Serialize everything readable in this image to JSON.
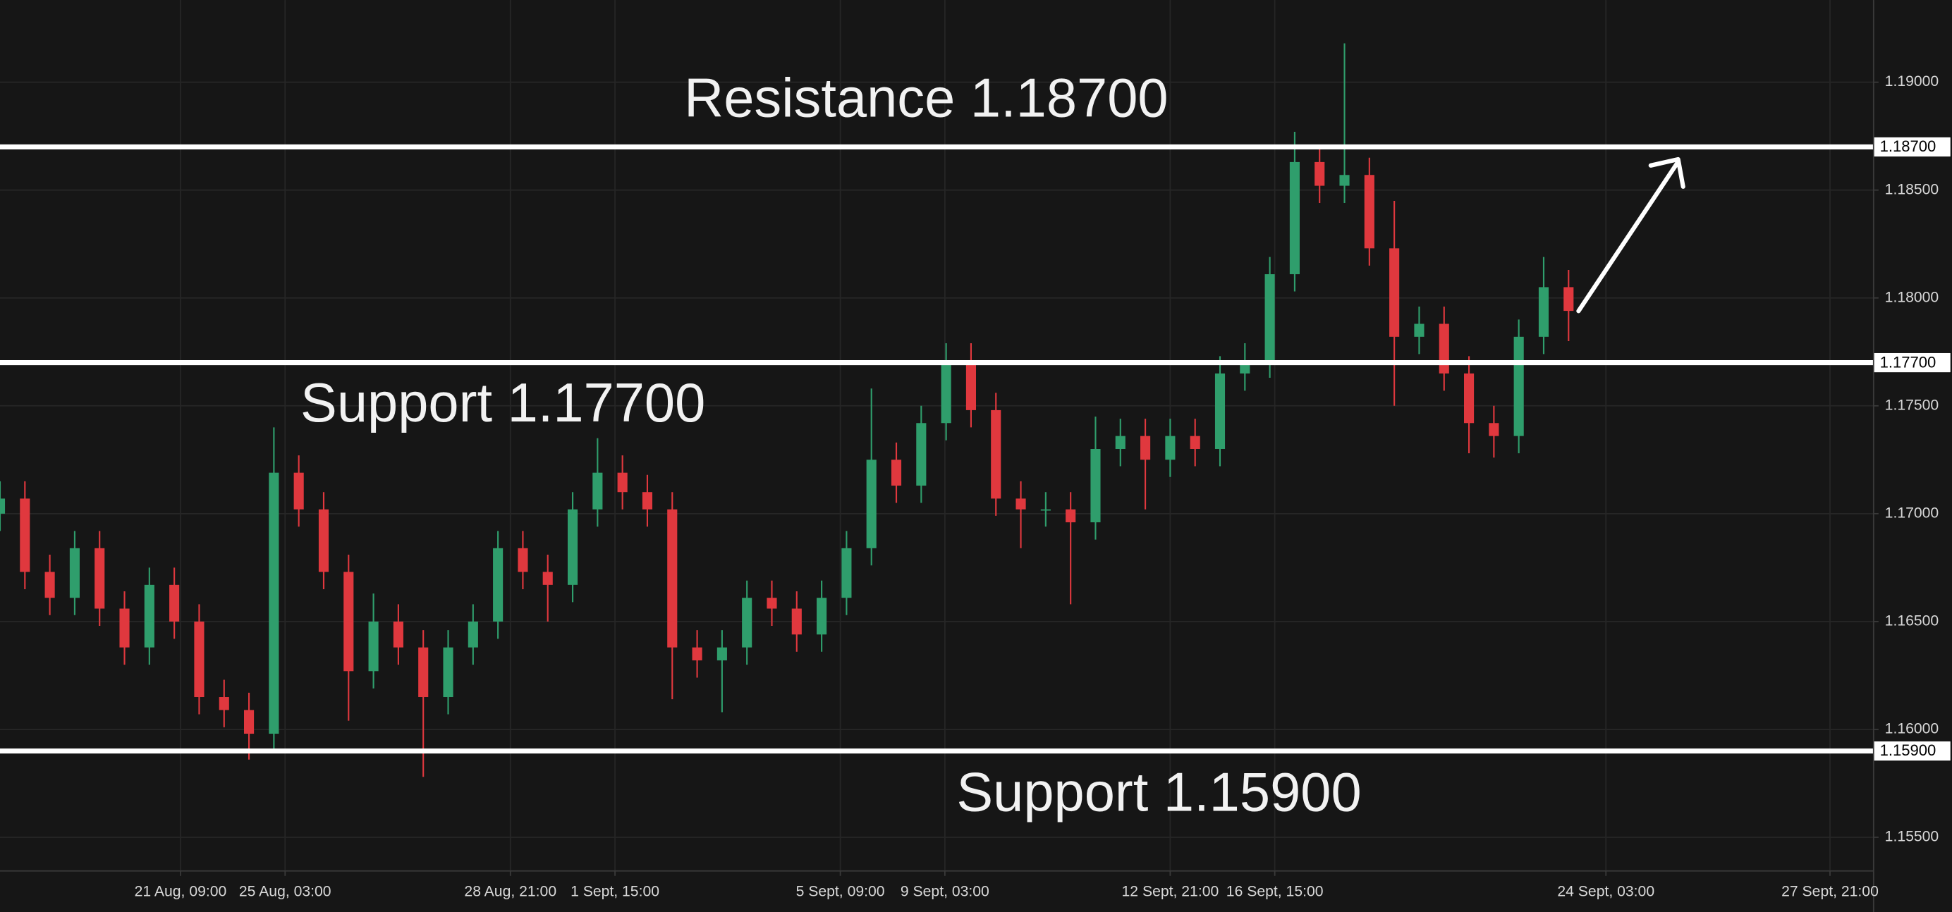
{
  "chart_data": {
    "type": "candlestick",
    "annotations": [
      "Resistance 1.18700",
      "Support 1.17700",
      "Support 1.15900"
    ],
    "up_color": "#2f9e6c",
    "down_color": "#e0383e",
    "grid": true,
    "xlim": [
      0,
      75.25
    ],
    "xticks": [
      {
        "value": 7.25,
        "label": "21 Aug, 09:00"
      },
      {
        "value": 11.45,
        "label": "25 Aug, 03:00"
      },
      {
        "value": 20.5,
        "label": "28 Aug, 21:00"
      },
      {
        "value": 24.7,
        "label": "1 Sept, 15:00"
      },
      {
        "value": 33.75,
        "label": "5 Sept, 09:00"
      },
      {
        "value": 37.95,
        "label": "9 Sept, 03:00"
      },
      {
        "value": 47,
        "label": "12 Sept, 21:00"
      },
      {
        "value": 51.2,
        "label": "16 Sept, 15:00"
      },
      {
        "value": 64.5,
        "label": "24 Sept, 03:00"
      },
      {
        "value": 73.5,
        "label": "27 Sept, 21:00"
      }
    ],
    "ylim": [
      1.15344,
      1.19381
    ],
    "yticks": [
      {
        "value": 1.155,
        "label": "1.15500"
      },
      {
        "value": 1.16,
        "label": "1.16000"
      },
      {
        "value": 1.165,
        "label": "1.16500"
      },
      {
        "value": 1.17,
        "label": "1.17000"
      },
      {
        "value": 1.175,
        "label": "1.17500"
      },
      {
        "value": 1.18,
        "label": "1.18000"
      },
      {
        "value": 1.185,
        "label": "1.18500"
      },
      {
        "value": 1.19,
        "label": "1.19000"
      }
    ],
    "levels": [
      {
        "value": 1.187,
        "label": "1.18700"
      },
      {
        "value": 1.177,
        "label": "1.17700"
      },
      {
        "value": 1.159,
        "label": "1.15900"
      }
    ],
    "open": [
      1.17,
      1.1707,
      1.1673,
      1.1661,
      1.1684,
      1.1656,
      1.1638,
      1.1667,
      1.165,
      1.1615,
      1.1609,
      1.1598,
      1.1719,
      1.1702,
      1.1673,
      1.1627,
      1.165,
      1.1638,
      1.1615,
      1.1638,
      1.165,
      1.1684,
      1.1673,
      1.1667,
      1.1702,
      1.1719,
      1.171,
      1.1702,
      1.1638,
      1.1632,
      1.1638,
      1.1661,
      1.1656,
      1.1644,
      1.1661,
      1.1684,
      1.1725,
      1.1713,
      1.1742,
      1.1771,
      1.1748,
      1.1707,
      1.1702,
      1.1702,
      1.1696,
      1.173,
      1.1736,
      1.1725,
      1.1736,
      1.173,
      1.1765,
      1.1771,
      1.1811,
      1.1863,
      1.1852,
      1.1857,
      1.1823,
      1.1782,
      1.1788,
      1.1765,
      1.1742,
      1.1736,
      1.1782,
      1.1805
    ],
    "high": [
      1.1715,
      1.1715,
      1.1681,
      1.1692,
      1.1692,
      1.1664,
      1.1675,
      1.1675,
      1.1658,
      1.1623,
      1.1617,
      1.174,
      1.1727,
      1.171,
      1.1681,
      1.1663,
      1.1658,
      1.1646,
      1.1646,
      1.1658,
      1.1692,
      1.1692,
      1.1681,
      1.171,
      1.1735,
      1.1727,
      1.1718,
      1.171,
      1.1646,
      1.1646,
      1.1669,
      1.1669,
      1.1664,
      1.1669,
      1.1692,
      1.1758,
      1.1733,
      1.175,
      1.1779,
      1.1779,
      1.1756,
      1.1715,
      1.171,
      1.171,
      1.1745,
      1.1744,
      1.1744,
      1.1744,
      1.1744,
      1.1773,
      1.1779,
      1.1819,
      1.1877,
      1.1871,
      1.1918,
      1.1865,
      1.1845,
      1.1796,
      1.1796,
      1.1773,
      1.175,
      1.179,
      1.1819,
      1.1813
    ],
    "low": [
      1.1692,
      1.1665,
      1.1653,
      1.1653,
      1.1648,
      1.163,
      1.163,
      1.1642,
      1.1607,
      1.1601,
      1.1586,
      1.159,
      1.1694,
      1.1665,
      1.1604,
      1.1619,
      1.163,
      1.1578,
      1.1607,
      1.163,
      1.1642,
      1.1665,
      1.165,
      1.1659,
      1.1694,
      1.1702,
      1.1694,
      1.1614,
      1.1624,
      1.1608,
      1.163,
      1.1648,
      1.1636,
      1.1636,
      1.1653,
      1.1676,
      1.1705,
      1.1705,
      1.1734,
      1.174,
      1.1699,
      1.1684,
      1.1694,
      1.1658,
      1.1688,
      1.1722,
      1.1702,
      1.1717,
      1.1722,
      1.1722,
      1.1757,
      1.1763,
      1.1803,
      1.1844,
      1.1844,
      1.1815,
      1.175,
      1.1774,
      1.1757,
      1.1728,
      1.1726,
      1.1728,
      1.1774,
      1.178
    ],
    "close": [
      1.1707,
      1.1673,
      1.1661,
      1.1684,
      1.1656,
      1.1638,
      1.1667,
      1.165,
      1.1615,
      1.1609,
      1.1598,
      1.1719,
      1.1702,
      1.1673,
      1.1627,
      1.165,
      1.1638,
      1.1615,
      1.1638,
      1.165,
      1.1684,
      1.1673,
      1.1667,
      1.1702,
      1.1719,
      1.171,
      1.1702,
      1.1638,
      1.1632,
      1.1638,
      1.1661,
      1.1656,
      1.1644,
      1.1661,
      1.1684,
      1.1725,
      1.1713,
      1.1742,
      1.1771,
      1.1748,
      1.1707,
      1.1702,
      1.1702,
      1.1696,
      1.173,
      1.1736,
      1.1725,
      1.1736,
      1.173,
      1.1765,
      1.1771,
      1.1811,
      1.1863,
      1.1852,
      1.1857,
      1.1823,
      1.1782,
      1.1788,
      1.1765,
      1.1742,
      1.1736,
      1.1782,
      1.1805,
      1.1794
    ]
  }
}
